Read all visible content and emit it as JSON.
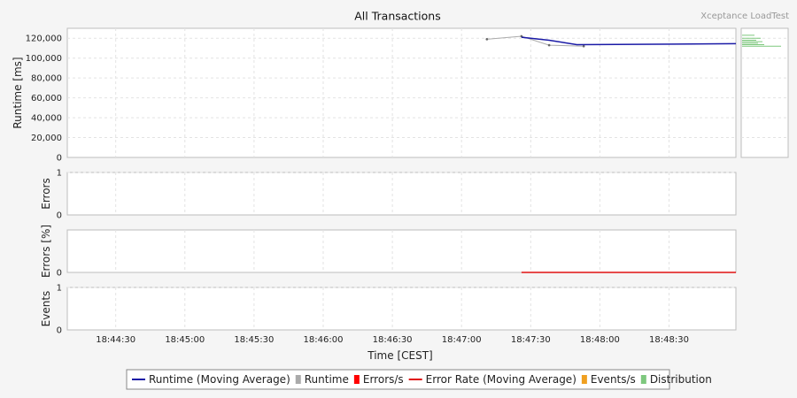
{
  "header": {
    "title": "All Transactions",
    "brand": "Xceptance LoadTest"
  },
  "chart_data": {
    "type": "line",
    "xlabel": "Time [CEST]",
    "x_ticks": [
      "18:44:30",
      "18:45:00",
      "18:45:30",
      "18:46:00",
      "18:46:30",
      "18:47:00",
      "18:47:30",
      "18:48:00",
      "18:48:30"
    ],
    "x_range": [
      "18:44:09",
      "18:48:59"
    ],
    "grid": true,
    "legend_position": "bottom",
    "panels": [
      {
        "ylabel": "Runtime [ms]",
        "ylim": [
          0,
          130000
        ],
        "y_ticks": [
          "0",
          "20,000",
          "40,000",
          "60,000",
          "80,000",
          "100,000",
          "120,000"
        ],
        "y_tick_values": [
          0,
          20000,
          40000,
          60000,
          80000,
          100000,
          120000
        ],
        "series": [
          {
            "name": "Runtime",
            "color": "#aaaaaa",
            "points": [
              {
                "t": "18:47:11",
                "v": 119000
              },
              {
                "t": "18:47:26",
                "v": 122000
              },
              {
                "t": "18:47:38",
                "v": 113000
              },
              {
                "t": "18:47:53",
                "v": 112000
              }
            ]
          },
          {
            "name": "Runtime (Moving Average)",
            "color": "#1a1aa6",
            "points": [
              {
                "t": "18:47:26",
                "v": 121000
              },
              {
                "t": "18:47:38",
                "v": 118000
              },
              {
                "t": "18:47:50",
                "v": 113500
              },
              {
                "t": "18:48:59",
                "v": 114500
              }
            ]
          }
        ],
        "distribution_values": [
          123000,
          120000,
          118000,
          116500,
          115000,
          113500,
          112000
        ]
      },
      {
        "ylabel": "Errors",
        "ylim": [
          0,
          1
        ],
        "y_ticks": [
          "0",
          "1"
        ],
        "y_tick_values": [
          0,
          1
        ]
      },
      {
        "ylabel": "Errors [%]",
        "ylim": [
          0,
          100
        ],
        "y_ticks": [
          "0"
        ],
        "y_tick_values": [
          0
        ],
        "series": [
          {
            "name": "Error Rate (Moving Average)",
            "color": "#e01010",
            "points": [
              {
                "t": "18:47:26",
                "v": 0
              },
              {
                "t": "18:48:59",
                "v": 0
              }
            ]
          }
        ]
      },
      {
        "ylabel": "Events",
        "ylim": [
          0,
          1
        ],
        "y_ticks": [
          "0",
          "1"
        ],
        "y_tick_values": [
          0,
          1
        ]
      }
    ],
    "legend": [
      {
        "label": "Runtime (Moving Average)",
        "color": "#1a1aa6",
        "kind": "line"
      },
      {
        "label": "Runtime",
        "color": "#aaaaaa",
        "kind": "box"
      },
      {
        "label": "Errors/s",
        "color": "#ff0000",
        "kind": "box"
      },
      {
        "label": "Error Rate (Moving Average)",
        "color": "#e01010",
        "kind": "line"
      },
      {
        "label": "Events/s",
        "color": "#f0a020",
        "kind": "box"
      },
      {
        "label": "Distribution",
        "color": "#7ec87e",
        "kind": "box"
      }
    ]
  }
}
